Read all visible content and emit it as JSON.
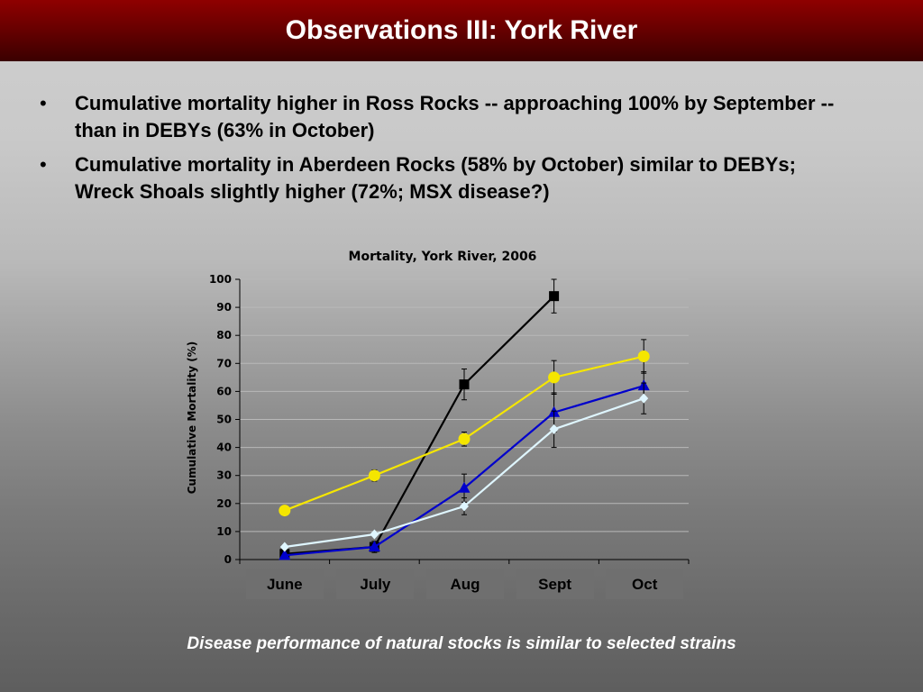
{
  "slide": {
    "title": "Observations III: York River",
    "bullets": [
      "Cumulative mortality higher in Ross Rocks -- approaching 100% by September -- than in DEBYs (63% in October)",
      "Cumulative mortality in Aberdeen Rocks (58% by October) similar to DEBYs; Wreck Shoals slightly higher (72%; MSX disease?)"
    ],
    "footer": "Disease performance of natural stocks is similar to selected strains"
  },
  "chart_data": {
    "type": "line",
    "title": "Mortality, York River, 2006",
    "xlabel": "",
    "ylabel": "Cumulative Mortality (%)",
    "ylim": [
      0,
      100
    ],
    "yticks": [
      0,
      10,
      20,
      30,
      40,
      50,
      60,
      70,
      80,
      90,
      100
    ],
    "grid": true,
    "legend": "none",
    "categories": [
      "June",
      "July",
      "Aug",
      "Sept",
      "Oct"
    ],
    "series": [
      {
        "color": "#000000",
        "marker": "square",
        "values": [
          2,
          4.5,
          62.5,
          94,
          null
        ],
        "errors": [
          null,
          2,
          5.5,
          6,
          null
        ]
      },
      {
        "color": "#f5e600",
        "marker": "circle",
        "values": [
          17.5,
          30,
          43,
          65,
          72.5
        ],
        "errors": [
          null,
          2,
          2.5,
          6,
          6
        ]
      },
      {
        "color": "#0000cc",
        "marker": "triangle",
        "values": [
          1.5,
          4.5,
          25.5,
          52.5,
          62
        ],
        "errors": [
          null,
          null,
          5,
          7,
          5
        ]
      },
      {
        "color": "#dff6ff",
        "marker": "diamond",
        "values": [
          4.5,
          9,
          19,
          46.5,
          57.5
        ],
        "errors": [
          null,
          null,
          3,
          6.5,
          5.5
        ]
      }
    ]
  }
}
